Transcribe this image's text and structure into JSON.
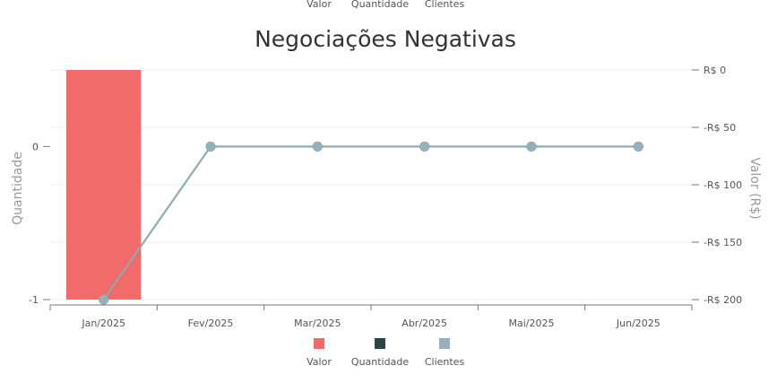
{
  "chart_data": {
    "type": "bar",
    "title": "Negociações Negativas",
    "categories": [
      "Jan/2025",
      "Fev/2025",
      "Mar/2025",
      "Abr/2025",
      "Mai/2025",
      "Jun/2025"
    ],
    "series": [
      {
        "name": "Valor",
        "type": "bar",
        "axis": "right",
        "color": "#f26b6b",
        "values": [
          -200,
          0,
          0,
          0,
          0,
          0
        ]
      },
      {
        "name": "Quantidade",
        "type": "line",
        "axis": "left",
        "color": "#2f4446",
        "values": [
          -1,
          0,
          0,
          0,
          0,
          0
        ]
      },
      {
        "name": "Clientes",
        "type": "line",
        "axis": "left",
        "color": "#93b1b8",
        "values": [
          -1,
          0,
          0,
          0,
          0,
          0
        ]
      }
    ],
    "y_left": {
      "label": "Quantidade",
      "ticks": [
        "0",
        "-1"
      ],
      "range": [
        -1,
        0.5
      ]
    },
    "y_right": {
      "label": "Valor (R$)",
      "ticks": [
        "R$ 0",
        "-R$ 50",
        "-R$ 100",
        "-R$ 150",
        "-R$ 200"
      ],
      "range": [
        -200,
        0
      ]
    },
    "grid": true,
    "legend": {
      "entries": [
        "Valor",
        "Quantidade",
        "Clientes"
      ],
      "placement": "bottom-center"
    }
  }
}
